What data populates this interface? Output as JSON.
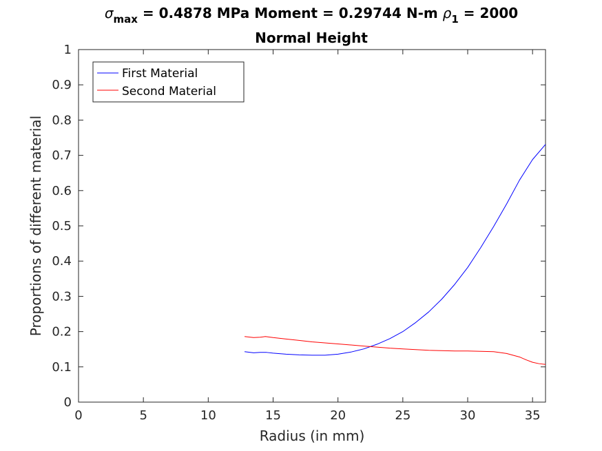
{
  "chart_data": {
    "type": "line",
    "title_lines": [
      "σmax = 0.4878 MPa Moment = 0.29744 N-m  ρ1 = 2000",
      "Normal Height"
    ],
    "title_parts": {
      "sigma": "σ",
      "sigma_sub": "max",
      "mid": " = 0.4878 MPa Moment = 0.29744 N-m  ",
      "rho": "ρ",
      "rho_sub": "1",
      "end": " = 2000",
      "line2": "Normal Height"
    },
    "xlabel": "Radius (in mm)",
    "ylabel": "Proportions of different material",
    "xlim": [
      0,
      36
    ],
    "ylim": [
      0,
      1
    ],
    "xticks": [
      0,
      5,
      10,
      15,
      20,
      25,
      30,
      35
    ],
    "yticks": [
      0,
      0.1,
      0.2,
      0.3,
      0.4,
      0.5,
      0.6,
      0.7,
      0.8,
      0.9,
      1
    ],
    "ytick_labels": [
      "0",
      "0.1",
      "0.2",
      "0.3",
      "0.4",
      "0.5",
      "0.6",
      "0.7",
      "0.8",
      "0.9",
      "1"
    ],
    "grid": false,
    "legend_position": "top-left",
    "series": [
      {
        "name": "First Material",
        "color": "#0000ff",
        "x": [
          12.8,
          13.5,
          14.0,
          14.5,
          15,
          16,
          17,
          18,
          18.5,
          19,
          20,
          21,
          22,
          23,
          24,
          25,
          26,
          27,
          28,
          29,
          30,
          31,
          32,
          33,
          34,
          35,
          36
        ],
        "y": [
          0.143,
          0.14,
          0.141,
          0.141,
          0.139,
          0.136,
          0.134,
          0.133,
          0.133,
          0.133,
          0.136,
          0.142,
          0.151,
          0.164,
          0.18,
          0.2,
          0.226,
          0.256,
          0.292,
          0.334,
          0.382,
          0.438,
          0.498,
          0.562,
          0.63,
          0.688,
          0.731
        ]
      },
      {
        "name": "Second Material",
        "color": "#ff0000",
        "x": [
          12.8,
          13.5,
          14.0,
          14.4,
          15,
          16,
          17,
          18,
          19,
          20,
          21,
          22,
          23,
          24,
          25,
          26,
          27,
          28,
          29,
          30,
          31,
          32,
          33,
          34,
          34.5,
          35,
          35.5,
          36
        ],
        "y": [
          0.186,
          0.183,
          0.184,
          0.186,
          0.183,
          0.179,
          0.175,
          0.171,
          0.168,
          0.165,
          0.162,
          0.159,
          0.156,
          0.153,
          0.151,
          0.149,
          0.147,
          0.146,
          0.145,
          0.145,
          0.144,
          0.143,
          0.138,
          0.128,
          0.12,
          0.113,
          0.109,
          0.107
        ]
      }
    ]
  }
}
